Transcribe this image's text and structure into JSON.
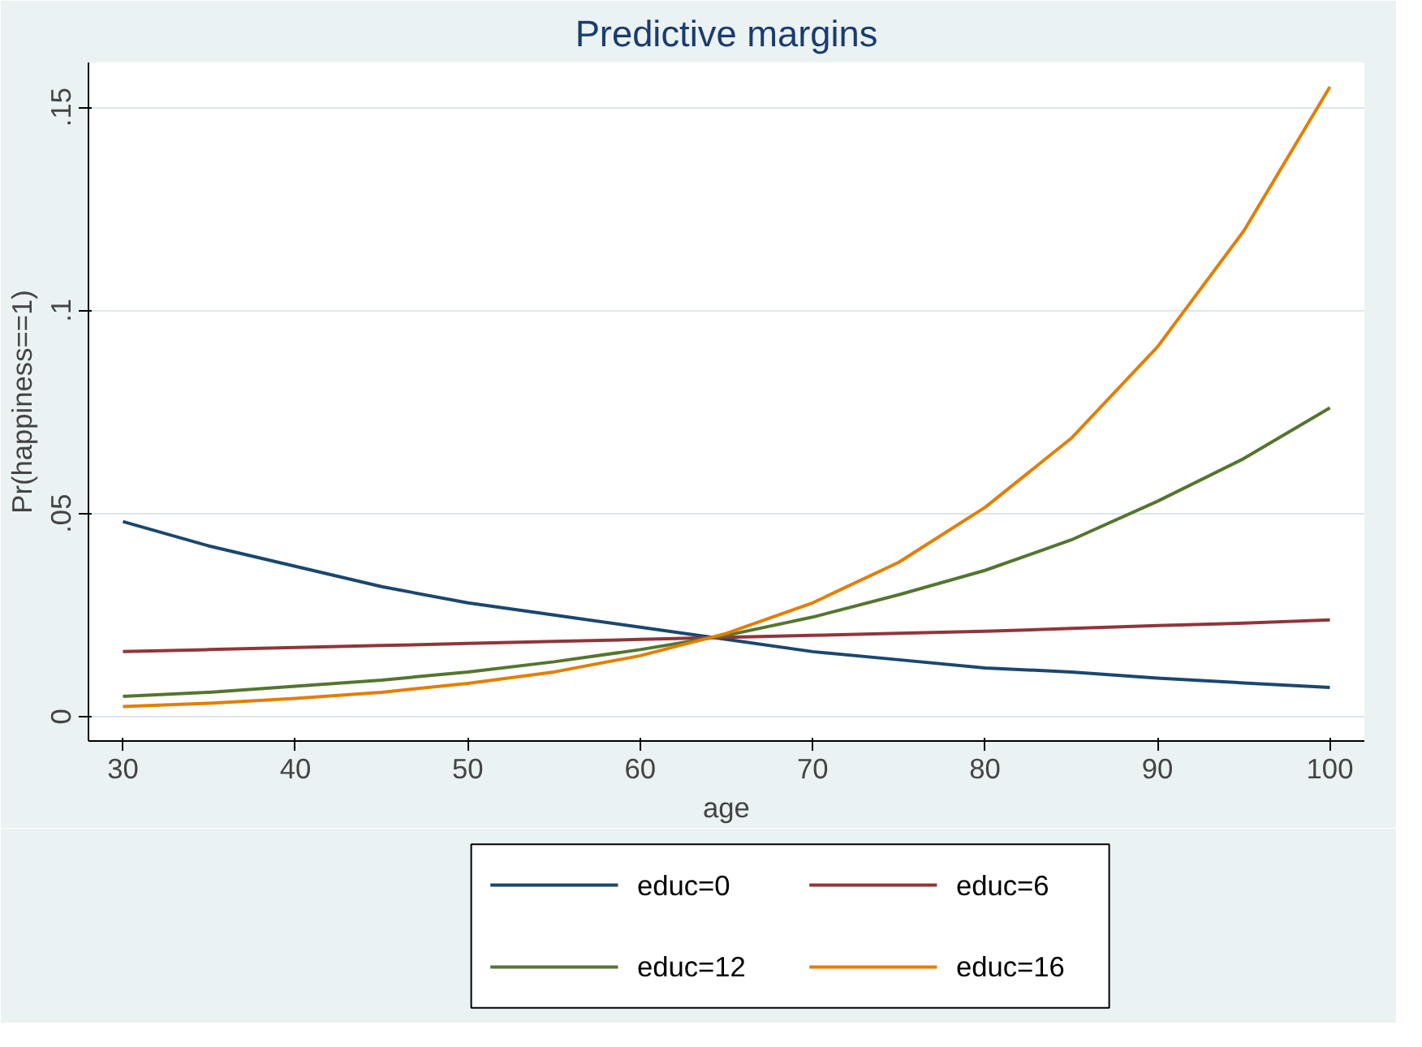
{
  "chart_data": {
    "type": "line",
    "title": "Predictive margins",
    "xlabel": "age",
    "ylabel": "Pr(happiness==1)",
    "x": [
      30,
      35,
      40,
      45,
      50,
      55,
      60,
      65,
      70,
      75,
      80,
      85,
      90,
      95,
      100
    ],
    "series": [
      {
        "name": "educ=0",
        "color": "#1a476f",
        "values": [
          0.048,
          0.042,
          0.037,
          0.032,
          0.028,
          0.025,
          0.022,
          0.019,
          0.016,
          0.014,
          0.012,
          0.011,
          0.0095,
          0.0083,
          0.0072
        ]
      },
      {
        "name": "educ=6",
        "color": "#90353b",
        "values": [
          0.016,
          0.0165,
          0.017,
          0.0175,
          0.018,
          0.0185,
          0.019,
          0.0195,
          0.02,
          0.0205,
          0.021,
          0.0217,
          0.0224,
          0.023,
          0.0238
        ]
      },
      {
        "name": "educ=12",
        "color": "#55752f",
        "values": [
          0.005,
          0.006,
          0.0075,
          0.009,
          0.011,
          0.0135,
          0.0165,
          0.02,
          0.0245,
          0.03,
          0.036,
          0.0435,
          0.053,
          0.0635,
          0.076
        ]
      },
      {
        "name": "educ=16",
        "color": "#e37e00",
        "values": [
          0.0025,
          0.0033,
          0.0045,
          0.006,
          0.0082,
          0.011,
          0.015,
          0.0205,
          0.028,
          0.038,
          0.0515,
          0.0685,
          0.091,
          0.1195,
          0.155
        ]
      }
    ],
    "xlim": [
      28,
      102
    ],
    "ylim": [
      -0.006,
      0.161
    ],
    "xticks": [
      30,
      40,
      50,
      60,
      70,
      80,
      90,
      100
    ],
    "yticks": [
      {
        "value": 0,
        "label": "0"
      },
      {
        "value": 0.05,
        "label": ".05"
      },
      {
        "value": 0.1,
        "label": ".1"
      },
      {
        "value": 0.15,
        "label": ".15"
      }
    ],
    "grid": "y",
    "legend": "bottom",
    "line_style": "solid",
    "marker": "none"
  }
}
